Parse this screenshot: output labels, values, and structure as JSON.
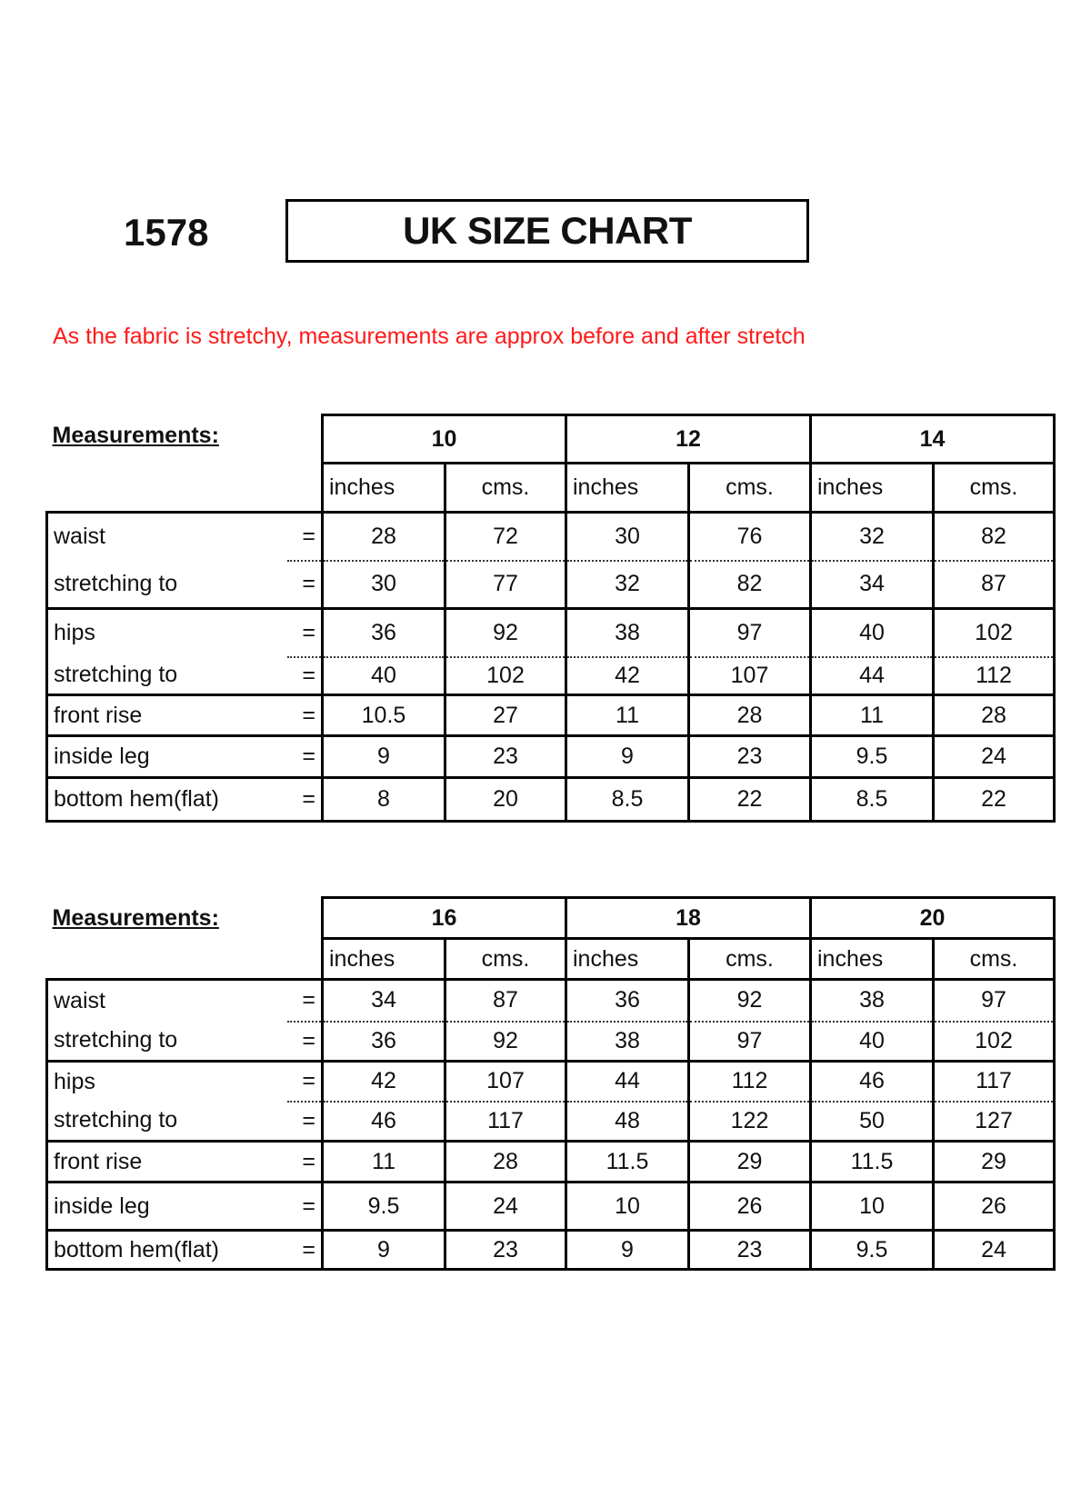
{
  "header": {
    "code": "1578",
    "title": "UK SIZE CHART",
    "note": "As the fabric is stretchy, measurements are approx before and after stretch",
    "note_color": "#ff1a1a"
  },
  "tables": [
    {
      "heading": "Measurements:",
      "sizes": [
        "10",
        "12",
        "14"
      ],
      "units": [
        "inches",
        "cms.",
        "inches",
        "cms.",
        "inches",
        "cms."
      ],
      "rows": [
        {
          "label": "waist",
          "eq": "=",
          "values": [
            "28",
            "72",
            "30",
            "76",
            "32",
            "82"
          ]
        },
        {
          "label": "stretching to",
          "eq": "=",
          "values": [
            "30",
            "77",
            "32",
            "82",
            "34",
            "87"
          ]
        },
        {
          "label": "hips",
          "eq": "=",
          "values": [
            "36",
            "92",
            "38",
            "97",
            "40",
            "102"
          ]
        },
        {
          "label": "stretching to",
          "eq": "=",
          "values": [
            "40",
            "102",
            "42",
            "107",
            "44",
            "112"
          ]
        },
        {
          "label": "front rise",
          "eq": "=",
          "values": [
            "10.5",
            "27",
            "11",
            "28",
            "11",
            "28"
          ]
        },
        {
          "label": "inside leg",
          "eq": "=",
          "values": [
            "9",
            "23",
            "9",
            "23",
            "9.5",
            "24"
          ]
        },
        {
          "label": "bottom hem(flat)",
          "eq": "=",
          "values": [
            "8",
            "20",
            "8.5",
            "22",
            "8.5",
            "22"
          ]
        }
      ]
    },
    {
      "heading": "Measurements:",
      "sizes": [
        "16",
        "18",
        "20"
      ],
      "units": [
        "inches",
        "cms.",
        "inches",
        "cms.",
        "inches",
        "cms."
      ],
      "rows": [
        {
          "label": "waist",
          "eq": "=",
          "values": [
            "34",
            "87",
            "36",
            "92",
            "38",
            "97"
          ]
        },
        {
          "label": "stretching to",
          "eq": "=",
          "values": [
            "36",
            "92",
            "38",
            "97",
            "40",
            "102"
          ]
        },
        {
          "label": "hips",
          "eq": "=",
          "values": [
            "42",
            "107",
            "44",
            "112",
            "46",
            "117"
          ]
        },
        {
          "label": "stretching to",
          "eq": "=",
          "values": [
            "46",
            "117",
            "48",
            "122",
            "50",
            "127"
          ]
        },
        {
          "label": "front rise",
          "eq": "=",
          "values": [
            "11",
            "28",
            "11.5",
            "29",
            "11.5",
            "29"
          ]
        },
        {
          "label": "inside leg",
          "eq": "=",
          "values": [
            "9.5",
            "24",
            "10",
            "26",
            "10",
            "26"
          ]
        },
        {
          "label": "bottom hem(flat)",
          "eq": "=",
          "values": [
            "9",
            "23",
            "9",
            "23",
            "9.5",
            "24"
          ]
        }
      ]
    }
  ]
}
